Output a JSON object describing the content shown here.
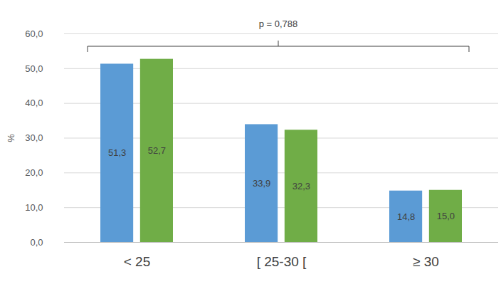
{
  "chart_data": {
    "type": "bar",
    "categories": [
      "< 25",
      "[ 25-30 [",
      "≥ 30"
    ],
    "series": [
      {
        "color": "#5b9bd5",
        "values": [
          51.3,
          33.9,
          14.8
        ],
        "value_labels": [
          "51,3",
          "33,9",
          "14,8"
        ]
      },
      {
        "color": "#70ad47",
        "values": [
          52.7,
          32.3,
          15.0
        ],
        "value_labels": [
          "52,7",
          "32,3",
          "15,0"
        ]
      }
    ],
    "ylabel": "%",
    "ylim": [
      0,
      60
    ],
    "yticks": [
      {
        "value": 0,
        "label": "0,0"
      },
      {
        "value": 10,
        "label": "10,0"
      },
      {
        "value": 20,
        "label": "20,0"
      },
      {
        "value": 30,
        "label": "30,0"
      },
      {
        "value": 40,
        "label": "40,0"
      },
      {
        "value": 50,
        "label": "50,0"
      },
      {
        "value": 60,
        "label": "60,0"
      }
    ],
    "grid": true,
    "data_labels": true,
    "annotation": "p = 0,788"
  }
}
